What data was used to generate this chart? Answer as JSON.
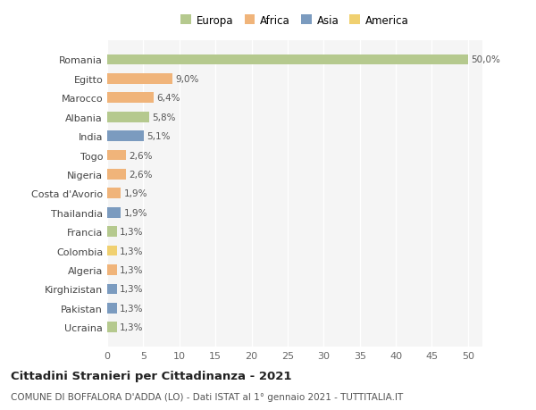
{
  "categories": [
    "Romania",
    "Egitto",
    "Marocco",
    "Albania",
    "India",
    "Togo",
    "Nigeria",
    "Costa d'Avorio",
    "Thailandia",
    "Francia",
    "Colombia",
    "Algeria",
    "Kirghizistan",
    "Pakistan",
    "Ucraina"
  ],
  "values": [
    50.0,
    9.0,
    6.4,
    5.8,
    5.1,
    2.6,
    2.6,
    1.9,
    1.9,
    1.3,
    1.3,
    1.3,
    1.3,
    1.3,
    1.3
  ],
  "labels": [
    "50,0%",
    "9,0%",
    "6,4%",
    "5,8%",
    "5,1%",
    "2,6%",
    "2,6%",
    "1,9%",
    "1,9%",
    "1,3%",
    "1,3%",
    "1,3%",
    "1,3%",
    "1,3%",
    "1,3%"
  ],
  "colors": [
    "#b5c98e",
    "#f0b47a",
    "#f0b47a",
    "#b5c98e",
    "#7b9bbf",
    "#f0b47a",
    "#f0b47a",
    "#f0b47a",
    "#7b9bbf",
    "#b5c98e",
    "#f0d070",
    "#f0b47a",
    "#7b9bbf",
    "#7b9bbf",
    "#b5c98e"
  ],
  "legend_labels": [
    "Europa",
    "Africa",
    "Asia",
    "America"
  ],
  "legend_colors": [
    "#b5c98e",
    "#f0b47a",
    "#7b9bbf",
    "#f0d070"
  ],
  "title_main": "Cittadini Stranieri per Cittadinanza - 2021",
  "title_sub": "COMUNE DI BOFFALORA D'ADDA (LO) - Dati ISTAT al 1° gennaio 2021 - TUTTITALIA.IT",
  "xlim": [
    0,
    52
  ],
  "xticks": [
    0,
    5,
    10,
    15,
    20,
    25,
    30,
    35,
    40,
    45,
    50
  ],
  "background_color": "#ffffff",
  "plot_bg_color": "#f5f5f5",
  "grid_color": "#ffffff"
}
